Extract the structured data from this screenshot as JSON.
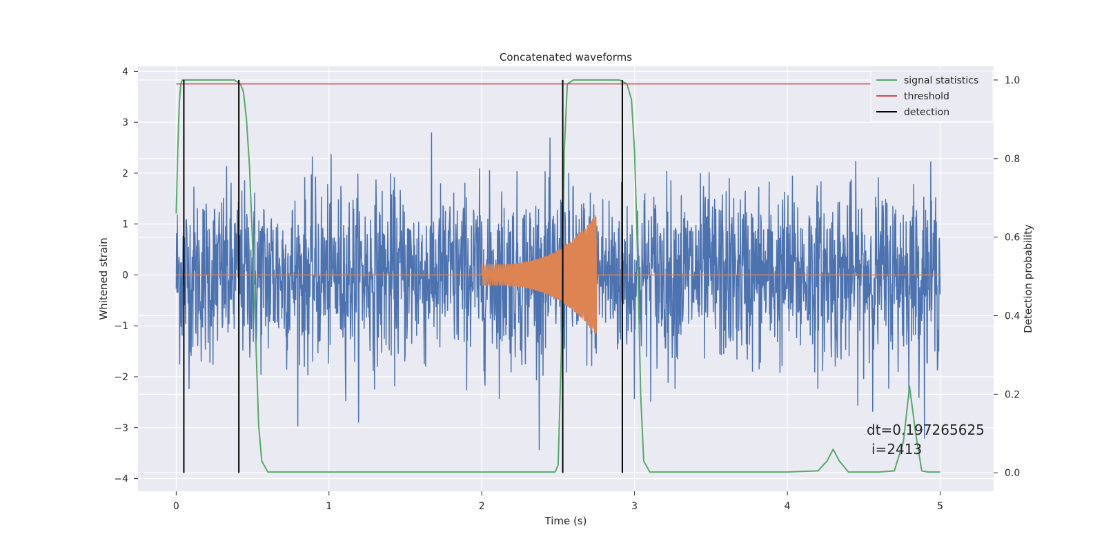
{
  "chart_data": {
    "type": "line",
    "title": "Concatenated waveforms",
    "xlabel": "Time (s)",
    "ylabel": "Whitened strain",
    "y2label": "Detection probability",
    "xlim": [
      -0.25,
      5.35
    ],
    "ylim": [
      -4.25,
      4.1
    ],
    "y2lim": [
      -0.047,
      1.035
    ],
    "x_ticks": [
      "0",
      "1",
      "2",
      "3",
      "4",
      "5"
    ],
    "y_ticks": [
      "−4",
      "−3",
      "−2",
      "−1",
      "0",
      "1",
      "2",
      "3",
      "4"
    ],
    "y2_ticks": [
      "0.0",
      "0.2",
      "0.4",
      "0.6",
      "0.8",
      "1.0"
    ],
    "grid": true,
    "legend_position": "top-right",
    "series": [
      {
        "name": "signal statistics",
        "color": "#55a868",
        "axis": "right",
        "x": [
          0.0,
          0.01,
          0.02,
          0.03,
          0.04,
          0.06,
          0.1,
          0.2,
          0.3,
          0.38,
          0.42,
          0.44,
          0.46,
          0.48,
          0.5,
          0.52,
          0.54,
          0.56,
          0.6,
          1.0,
          1.5,
          2.0,
          2.4,
          2.48,
          2.5,
          2.52,
          2.54,
          2.56,
          2.6,
          2.8,
          2.9,
          2.95,
          2.98,
          3.0,
          3.02,
          3.04,
          3.06,
          3.1,
          3.5,
          4.0,
          4.2,
          4.26,
          4.3,
          4.34,
          4.4,
          4.6,
          4.7,
          4.76,
          4.8,
          4.84,
          4.88,
          4.92,
          5.0
        ],
        "y": [
          0.66,
          0.82,
          0.94,
          0.99,
          1.0,
          1.0,
          1.0,
          1.0,
          1.0,
          1.0,
          0.99,
          0.97,
          0.9,
          0.78,
          0.58,
          0.35,
          0.12,
          0.03,
          0.002,
          0.002,
          0.002,
          0.002,
          0.002,
          0.002,
          0.02,
          0.3,
          0.82,
          0.99,
          1.0,
          1.0,
          1.0,
          0.99,
          0.95,
          0.82,
          0.55,
          0.2,
          0.03,
          0.002,
          0.002,
          0.002,
          0.005,
          0.03,
          0.06,
          0.03,
          0.002,
          0.002,
          0.005,
          0.08,
          0.22,
          0.1,
          0.005,
          0.002,
          0.002
        ]
      },
      {
        "name": "threshold",
        "color": "#c44e52",
        "axis": "right",
        "x": [
          0,
          5
        ],
        "y": [
          0.99,
          0.99
        ]
      },
      {
        "name": "detection",
        "color": "#000000",
        "axis": "right",
        "x": [
          0.05,
          0.41,
          2.53,
          2.92
        ]
      },
      {
        "name": "",
        "color": "#4c72b0",
        "axis": "left",
        "kind": "noise",
        "x_range": [
          0,
          5
        ],
        "typical_amplitude": 0.9,
        "peak_amplitude": 3.7
      },
      {
        "name": "",
        "color": "#dd8452",
        "axis": "left",
        "kind": "chirp",
        "x_range": [
          2.0,
          2.75
        ],
        "amplitude_start": 0.2,
        "amplitude_end": 1.2,
        "baseline_x_range": [
          0,
          5
        ],
        "baseline_y": 0
      }
    ],
    "annotations": [
      "dt=0.197265625",
      "i=2413"
    ]
  }
}
